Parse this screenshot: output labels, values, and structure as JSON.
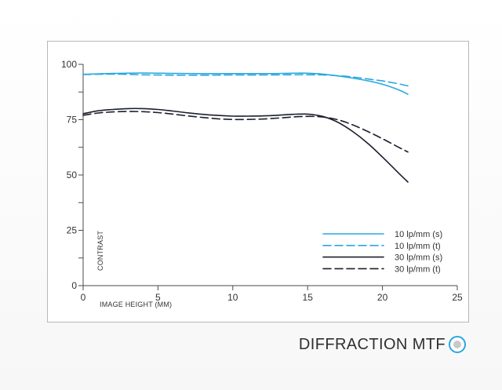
{
  "caption": "DIFFRACTION MTF",
  "colors": {
    "cyan": "#29a8e0",
    "dark": "#1c1f2e"
  },
  "chart_data": {
    "type": "line",
    "title": "",
    "xlabel": "IMAGE HEIGHT (MM)",
    "ylabel": "CONTRAST",
    "xlim": [
      0,
      25
    ],
    "ylim": [
      0,
      100
    ],
    "x_ticks": [
      0,
      5,
      10,
      15,
      20,
      25
    ],
    "y_tick_labels": [
      0,
      25,
      50,
      75,
      100
    ],
    "grid": false,
    "legend_position": "bottom-right",
    "series": [
      {
        "name": "10 lp/mm (s)",
        "color": "#29a8e0",
        "dash": "solid",
        "x": [
          0,
          2,
          4,
          6,
          8,
          10,
          12,
          14,
          15,
          16,
          17,
          18,
          19,
          20,
          21,
          21.7
        ],
        "y": [
          95.5,
          95.9,
          96.1,
          95.9,
          95.8,
          95.8,
          95.8,
          96,
          96,
          95.6,
          94.8,
          93.8,
          92.6,
          91,
          88.7,
          86.5
        ]
      },
      {
        "name": "10 lp/mm (t)",
        "color": "#29a8e0",
        "dash": "long-dash",
        "x": [
          0,
          2,
          4,
          6,
          8,
          10,
          12,
          14,
          15,
          16,
          17,
          18,
          19,
          20,
          21,
          21.7
        ],
        "y": [
          95.4,
          95.6,
          95.3,
          95.1,
          95.1,
          95.2,
          95.2,
          95.3,
          95.3,
          95.2,
          94.9,
          94.3,
          93.4,
          92.5,
          91.3,
          90.3
        ]
      },
      {
        "name": "30 lp/mm (s)",
        "color": "#1c1f2e",
        "dash": "solid",
        "x": [
          0,
          1,
          2,
          3,
          4,
          5,
          6,
          7,
          8,
          9,
          10,
          11,
          12,
          13,
          14,
          15,
          16,
          17,
          18,
          19,
          20,
          21,
          21.7
        ],
        "y": [
          77.7,
          79,
          79.6,
          80,
          80,
          79.6,
          78.9,
          78.1,
          77.4,
          76.9,
          76.6,
          76.6,
          76.7,
          77,
          77.4,
          77.5,
          76.5,
          73.9,
          69.7,
          64.4,
          58.1,
          51.4,
          46.8
        ]
      },
      {
        "name": "30 lp/mm (t)",
        "color": "#1c1f2e",
        "dash": "long-dash",
        "x": [
          0,
          1,
          2,
          3,
          4,
          5,
          6,
          7,
          8,
          9,
          10,
          11,
          12,
          13,
          14,
          15,
          16,
          17,
          18,
          19,
          20,
          21,
          21.7
        ],
        "y": [
          77,
          78,
          78.5,
          78.7,
          78.6,
          78.2,
          77.5,
          76.7,
          76,
          75.4,
          75.1,
          75.1,
          75.3,
          75.7,
          76.2,
          76.5,
          76.2,
          75,
          72.7,
          69.7,
          66.4,
          62.8,
          60.4
        ]
      }
    ]
  }
}
